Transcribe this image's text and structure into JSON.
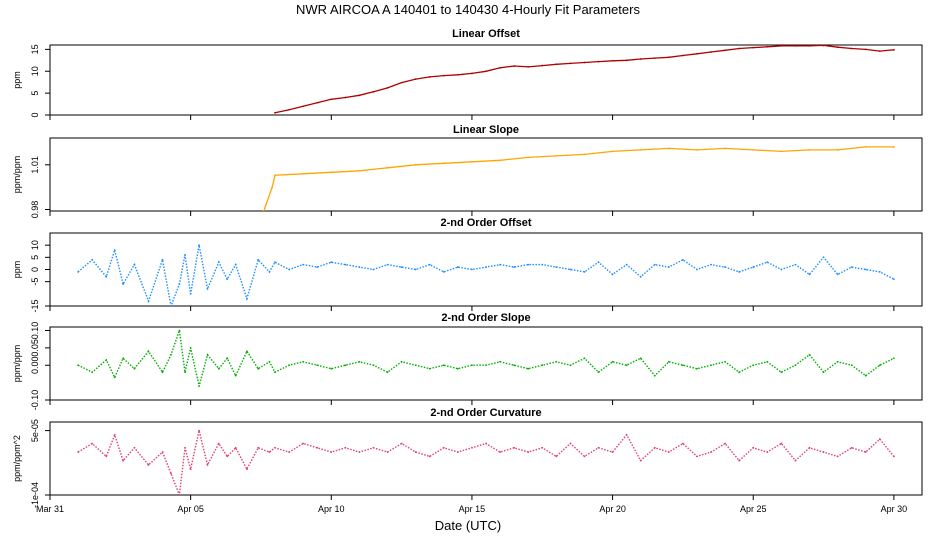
{
  "figure": {
    "title": "NWR   AIRCOA A   140401 to 140430   4-Hourly Fit Parameters",
    "xlabel": "Date (UTC)",
    "xticks": [
      "Mar 31",
      "Apr 05",
      "Apr 10",
      "Apr 15",
      "Apr 20",
      "Apr 25",
      "Apr 30"
    ]
  },
  "chart_data": [
    {
      "type": "line",
      "title": "Linear Offset",
      "ylabel": "ppm",
      "color": "#b00000",
      "style": "solid",
      "xlim": [
        31.0,
        62.0
      ],
      "ylim": [
        0,
        16
      ],
      "yticks": [
        "0",
        "5",
        "10",
        "15"
      ],
      "x": [
        39.0,
        39.5,
        40.0,
        40.5,
        41.0,
        41.5,
        42.0,
        42.5,
        43.0,
        43.5,
        44.0,
        44.5,
        45.0,
        45.5,
        46.0,
        46.5,
        47.0,
        47.5,
        48.0,
        48.5,
        49.0,
        49.5,
        50.0,
        50.5,
        51.0,
        51.5,
        52.0,
        52.5,
        53.0,
        53.5,
        54.0,
        54.5,
        55.0,
        55.5,
        56.0,
        56.5,
        57.0,
        57.5,
        58.0,
        58.5,
        59.0,
        59.5,
        60.0,
        60.5,
        61.0
      ],
      "y": [
        0.5,
        1.2,
        2.0,
        2.8,
        3.6,
        4.0,
        4.5,
        5.3,
        6.2,
        7.4,
        8.2,
        8.7,
        9.0,
        9.2,
        9.5,
        10.0,
        10.8,
        11.2,
        11.0,
        11.3,
        11.6,
        11.8,
        12.0,
        12.2,
        12.4,
        12.5,
        12.8,
        13.0,
        13.2,
        13.6,
        14.0,
        14.4,
        14.8,
        15.2,
        15.4,
        15.6,
        15.8,
        15.8,
        15.8,
        15.9,
        15.5,
        15.2,
        15.0,
        14.6,
        14.9
      ]
    },
    {
      "type": "line",
      "title": "Linear Slope",
      "ylabel": "ppm/ppm",
      "color": "#ffa500",
      "style": "solid",
      "xlim": [
        31.0,
        62.0
      ],
      "ylim": [
        0.979,
        1.028
      ],
      "yticks": [
        "0.98",
        "1.01"
      ],
      "x": [
        38.6,
        38.9,
        39.0,
        40.0,
        41.0,
        42.0,
        43.0,
        44.0,
        45.0,
        46.0,
        47.0,
        48.0,
        49.0,
        50.0,
        51.0,
        52.0,
        53.0,
        54.0,
        55.0,
        56.0,
        57.0,
        58.0,
        59.0,
        60.0,
        61.0
      ],
      "y": [
        0.979,
        0.995,
        1.003,
        1.004,
        1.005,
        1.006,
        1.008,
        1.01,
        1.011,
        1.012,
        1.013,
        1.015,
        1.016,
        1.017,
        1.019,
        1.02,
        1.021,
        1.02,
        1.021,
        1.02,
        1.019,
        1.02,
        1.02,
        1.022,
        1.022
      ]
    },
    {
      "type": "line",
      "title": "2-nd Order Offset",
      "ylabel": "ppm",
      "color": "#1e90ff",
      "style": "dotted",
      "xlim": [
        31.0,
        62.0
      ],
      "ylim": [
        -15,
        15
      ],
      "yticks": [
        "-15",
        "-5",
        "0",
        "5",
        "10"
      ],
      "x": [
        32.0,
        32.5,
        33.0,
        33.3,
        33.6,
        34.0,
        34.5,
        35.0,
        35.3,
        35.6,
        35.8,
        36.0,
        36.3,
        36.6,
        37.0,
        37.3,
        37.6,
        38.0,
        38.4,
        38.8,
        39.0,
        39.5,
        40.0,
        40.5,
        41.0,
        41.5,
        42.0,
        42.5,
        43.0,
        43.5,
        44.0,
        44.5,
        45.0,
        45.5,
        46.0,
        46.5,
        47.0,
        47.5,
        48.0,
        48.5,
        49.0,
        49.5,
        50.0,
        50.5,
        51.0,
        51.5,
        52.0,
        52.5,
        53.0,
        53.5,
        54.0,
        54.5,
        55.0,
        55.5,
        56.0,
        56.5,
        57.0,
        57.5,
        58.0,
        58.5,
        59.0,
        59.5,
        60.0,
        60.5,
        61.0
      ],
      "y": [
        -1,
        4,
        -3,
        8,
        -6,
        2,
        -13,
        4,
        -15,
        -6,
        6,
        -10,
        10,
        -8,
        3,
        -4,
        2,
        -12,
        4,
        -1,
        3,
        0,
        2,
        1,
        3,
        2,
        1,
        0,
        2,
        1,
        0,
        2,
        -1,
        1,
        0,
        1,
        2,
        1,
        2,
        2,
        1,
        0,
        -1,
        3,
        -2,
        2,
        -3,
        2,
        1,
        4,
        0,
        2,
        1,
        -1,
        1,
        3,
        0,
        2,
        -2,
        5,
        -2,
        1,
        0,
        -1,
        -4
      ]
    },
    {
      "type": "line",
      "title": "2-nd Order Slope",
      "ylabel": "ppm/ppm",
      "color": "#00b000",
      "style": "dotted",
      "xlim": [
        31.0,
        62.0
      ],
      "ylim": [
        -0.1,
        0.11
      ],
      "yticks": [
        "-0.10",
        "0.00",
        "0.05",
        "0.10"
      ],
      "x": [
        32.0,
        32.5,
        33.0,
        33.3,
        33.6,
        34.0,
        34.5,
        35.0,
        35.3,
        35.6,
        35.8,
        36.0,
        36.3,
        36.6,
        37.0,
        37.3,
        37.6,
        38.0,
        38.4,
        38.8,
        39.0,
        39.5,
        40.0,
        40.5,
        41.0,
        41.5,
        42.0,
        42.5,
        43.0,
        43.5,
        44.0,
        44.5,
        45.0,
        45.5,
        46.0,
        46.5,
        47.0,
        47.5,
        48.0,
        48.5,
        49.0,
        49.5,
        50.0,
        50.5,
        51.0,
        51.5,
        52.0,
        52.5,
        53.0,
        53.5,
        54.0,
        54.5,
        55.0,
        55.5,
        56.0,
        56.5,
        57.0,
        57.5,
        58.0,
        58.5,
        59.0,
        59.5,
        60.0,
        60.5,
        61.0
      ],
      "y": [
        0.0,
        -0.02,
        0.015,
        -0.035,
        0.02,
        -0.01,
        0.04,
        -0.02,
        0.03,
        0.1,
        -0.02,
        0.05,
        -0.06,
        0.03,
        -0.01,
        0.02,
        -0.03,
        0.04,
        -0.01,
        0.01,
        -0.02,
        0.0,
        0.01,
        0.0,
        -0.01,
        0.0,
        0.01,
        0.0,
        -0.02,
        0.01,
        0.0,
        -0.01,
        0.0,
        -0.01,
        0.0,
        0.0,
        0.01,
        0.0,
        -0.01,
        0.0,
        0.01,
        0.0,
        0.02,
        -0.02,
        0.01,
        0.0,
        0.02,
        -0.03,
        0.01,
        0.0,
        -0.01,
        0.0,
        0.01,
        -0.02,
        0.0,
        0.01,
        -0.02,
        0.0,
        0.03,
        -0.02,
        0.01,
        0.0,
        -0.03,
        0.0,
        0.02
      ]
    },
    {
      "type": "line",
      "title": "2-nd Order Curvature",
      "ylabel": "ppm/ppm^2",
      "color": "#e0406a",
      "style": "dotted",
      "xlim": [
        31.0,
        62.0
      ],
      "ylim": [
        -0.0001,
        7e-05
      ],
      "yticks": [
        "-1e-04",
        "5e-05"
      ],
      "x": [
        32.0,
        32.5,
        33.0,
        33.3,
        33.6,
        34.0,
        34.5,
        35.0,
        35.3,
        35.6,
        35.8,
        36.0,
        36.3,
        36.6,
        37.0,
        37.3,
        37.6,
        38.0,
        38.4,
        38.8,
        39.0,
        39.5,
        40.0,
        40.5,
        41.0,
        41.5,
        42.0,
        42.5,
        43.0,
        43.5,
        44.0,
        44.5,
        45.0,
        45.5,
        46.0,
        46.5,
        47.0,
        47.5,
        48.0,
        48.5,
        49.0,
        49.5,
        50.0,
        50.5,
        51.0,
        51.5,
        52.0,
        52.5,
        53.0,
        53.5,
        54.0,
        54.5,
        55.0,
        55.5,
        56.0,
        56.5,
        57.0,
        57.5,
        58.0,
        58.5,
        59.0,
        59.5,
        60.0,
        60.5,
        61.0
      ],
      "y": [
        0.0,
        2e-05,
        -1e-05,
        4e-05,
        -2e-05,
        1e-05,
        -3e-05,
        0.0,
        -5e-05,
        -0.0001,
        1e-05,
        -4e-05,
        5e-05,
        -3e-05,
        2e-05,
        -1e-05,
        1e-05,
        -4e-05,
        1e-05,
        0.0,
        1e-05,
        0.0,
        2e-05,
        1e-05,
        0.0,
        1e-05,
        0.0,
        1e-05,
        0.0,
        2e-05,
        0.0,
        -1e-05,
        1e-05,
        0.0,
        1e-05,
        2e-05,
        0.0,
        1e-05,
        0.0,
        1e-05,
        -1e-05,
        2e-05,
        -1e-05,
        1e-05,
        0.0,
        4e-05,
        -2e-05,
        1e-05,
        0.0,
        2e-05,
        -1e-05,
        0.0,
        2e-05,
        -2e-05,
        1e-05,
        0.0,
        2e-05,
        -2e-05,
        1e-05,
        0.0,
        -1e-05,
        1e-05,
        0.0,
        3e-05,
        -1e-05
      ]
    }
  ]
}
